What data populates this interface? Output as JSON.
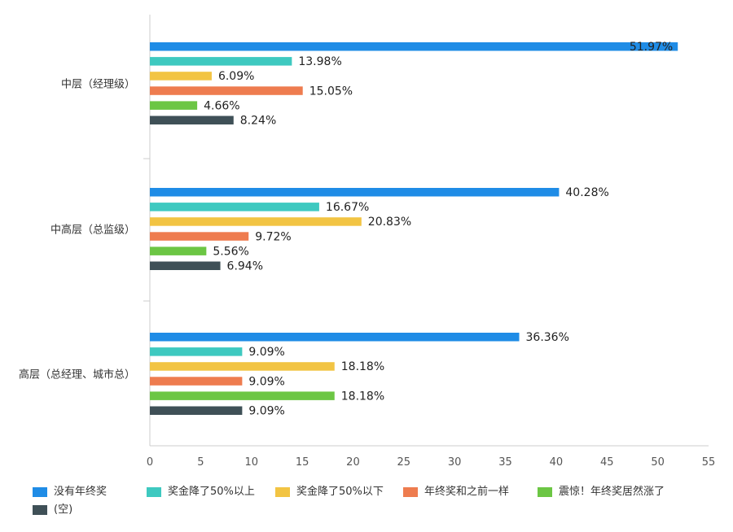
{
  "chart_data": {
    "type": "bar",
    "orientation": "horizontal",
    "categories": [
      "中层（经理级）",
      "中高层（总监级）",
      "高层（总经理、城市总）"
    ],
    "series": [
      {
        "name": "没有年终奖",
        "color": "#1f8ce6",
        "values": [
          51.97,
          40.28,
          36.36
        ],
        "labels": [
          "51.97%",
          "40.28%",
          "36.36%"
        ]
      },
      {
        "name": "奖金降了50%以上",
        "color": "#3ec9c0",
        "values": [
          13.98,
          16.67,
          9.09
        ],
        "labels": [
          "13.98%",
          "16.67%",
          "9.09%"
        ]
      },
      {
        "name": "奖金降了50%以下",
        "color": "#f2c443",
        "values": [
          6.09,
          20.83,
          18.18
        ],
        "labels": [
          "6.09%",
          "20.83%",
          "18.18%"
        ]
      },
      {
        "name": "年终奖和之前一样",
        "color": "#ee7c4f",
        "values": [
          15.05,
          9.72,
          9.09
        ],
        "labels": [
          "15.05%",
          "9.72%",
          "9.09%"
        ]
      },
      {
        "name": "震惊！年终奖居然涨了",
        "color": "#6cc644",
        "values": [
          4.66,
          5.56,
          18.18
        ],
        "labels": [
          "4.66%",
          "5.56%",
          "18.18%"
        ]
      },
      {
        "name": "(空)",
        "color": "#3f5057",
        "values": [
          8.24,
          6.94,
          9.09
        ],
        "labels": [
          "8.24%",
          "6.94%",
          "9.09%"
        ]
      }
    ],
    "xlim": [
      0,
      55
    ],
    "xticks": [
      "0",
      "5",
      "10",
      "15",
      "20",
      "25",
      "30",
      "35",
      "40",
      "45",
      "50",
      "55"
    ],
    "legend_position": "bottom",
    "grid": false
  }
}
